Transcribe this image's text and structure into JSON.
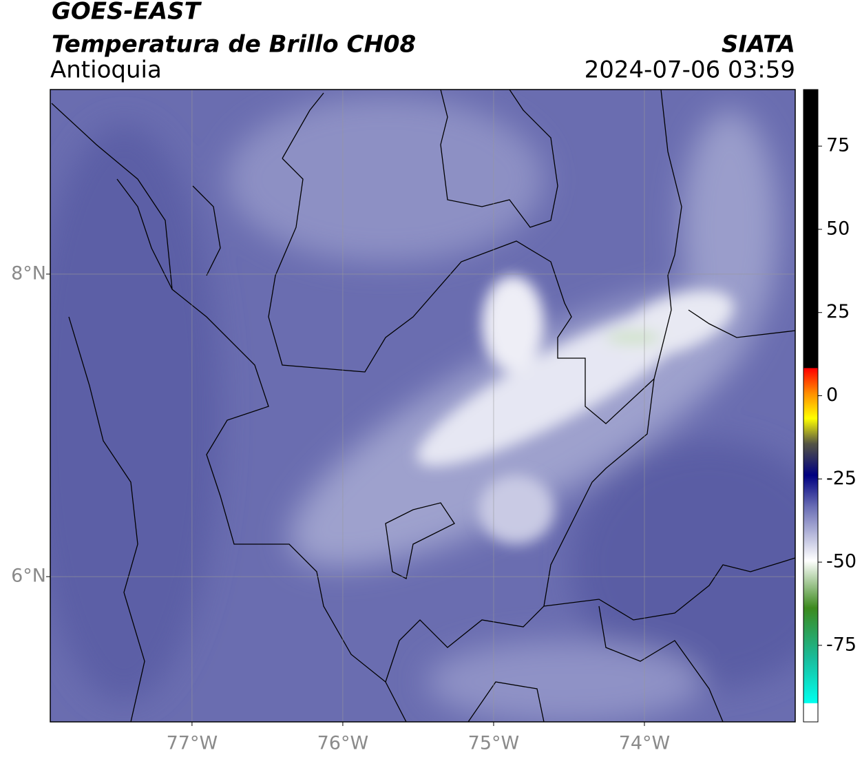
{
  "chart_data": {
    "type": "map",
    "title": "GOES-EAST",
    "subtitle": "Temperatura de Brillo CH08",
    "region": "Antioquia",
    "source": "SIATA",
    "datetime": "2024-07-06 03:59",
    "xlim": [
      -77.94,
      -73.0
    ],
    "ylim": [
      5.04,
      9.22
    ],
    "xticks": [
      {
        "value": -77,
        "label": "77°W"
      },
      {
        "value": -76,
        "label": "76°W"
      },
      {
        "value": -75,
        "label": "75°W"
      },
      {
        "value": -74,
        "label": "74°W"
      }
    ],
    "yticks": [
      {
        "value": 6,
        "label": "6°N"
      },
      {
        "value": 8,
        "label": "8°N"
      }
    ],
    "grid": true,
    "colorbar": {
      "lim": [
        -98,
        92
      ],
      "ticks": [
        75,
        50,
        25,
        0,
        -25,
        -50,
        -75
      ]
    }
  }
}
